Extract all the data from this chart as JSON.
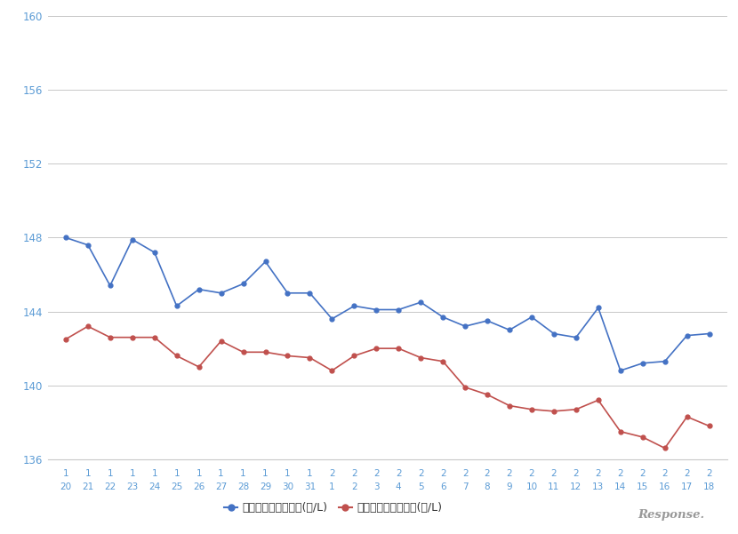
{
  "x_labels_row1": [
    "1",
    "1",
    "1",
    "1",
    "1",
    "1",
    "1",
    "1",
    "1",
    "1",
    "1",
    "1",
    "2",
    "2",
    "2",
    "2",
    "2",
    "2",
    "2",
    "2",
    "2",
    "2",
    "2",
    "2",
    "2",
    "2",
    "2",
    "2",
    "2",
    "2"
  ],
  "x_labels_row2": [
    "20",
    "21",
    "22",
    "23",
    "24",
    "25",
    "26",
    "27",
    "28",
    "29",
    "30",
    "31",
    "1",
    "2",
    "3",
    "4",
    "5",
    "6",
    "7",
    "8",
    "9",
    "10",
    "11",
    "12",
    "13",
    "14",
    "15",
    "16",
    "17",
    "18"
  ],
  "blue_values": [
    148.0,
    147.6,
    145.4,
    147.9,
    147.2,
    144.3,
    145.2,
    145.0,
    145.5,
    146.7,
    145.0,
    145.0,
    143.6,
    144.3,
    144.1,
    144.1,
    144.5,
    143.7,
    143.2,
    143.5,
    143.0,
    143.7,
    142.8,
    142.6,
    144.2,
    140.8,
    141.2,
    141.3,
    142.7,
    142.8
  ],
  "red_values": [
    142.5,
    143.2,
    142.6,
    142.6,
    142.6,
    141.6,
    141.0,
    142.4,
    141.8,
    141.8,
    141.6,
    141.5,
    140.8,
    141.6,
    142.0,
    142.0,
    141.5,
    141.3,
    139.9,
    139.5,
    138.9,
    138.7,
    138.6,
    138.7,
    139.2,
    137.5,
    137.2,
    136.6,
    138.3,
    137.8
  ],
  "blue_color": "#4472C4",
  "red_color": "#C0504D",
  "ylim_min": 136,
  "ylim_max": 160,
  "yticks": [
    136,
    140,
    144,
    148,
    152,
    156,
    160
  ],
  "bg_color": "#FFFFFF",
  "grid_color": "#C8C8C8",
  "legend_blue": "レギュラー看板価格(円/L)",
  "legend_red": "レギュラー実売価格(円/L)",
  "axis_label_color": "#5B9BD5",
  "tick_label_color": "#5B9BD5",
  "response_color": "#999999"
}
